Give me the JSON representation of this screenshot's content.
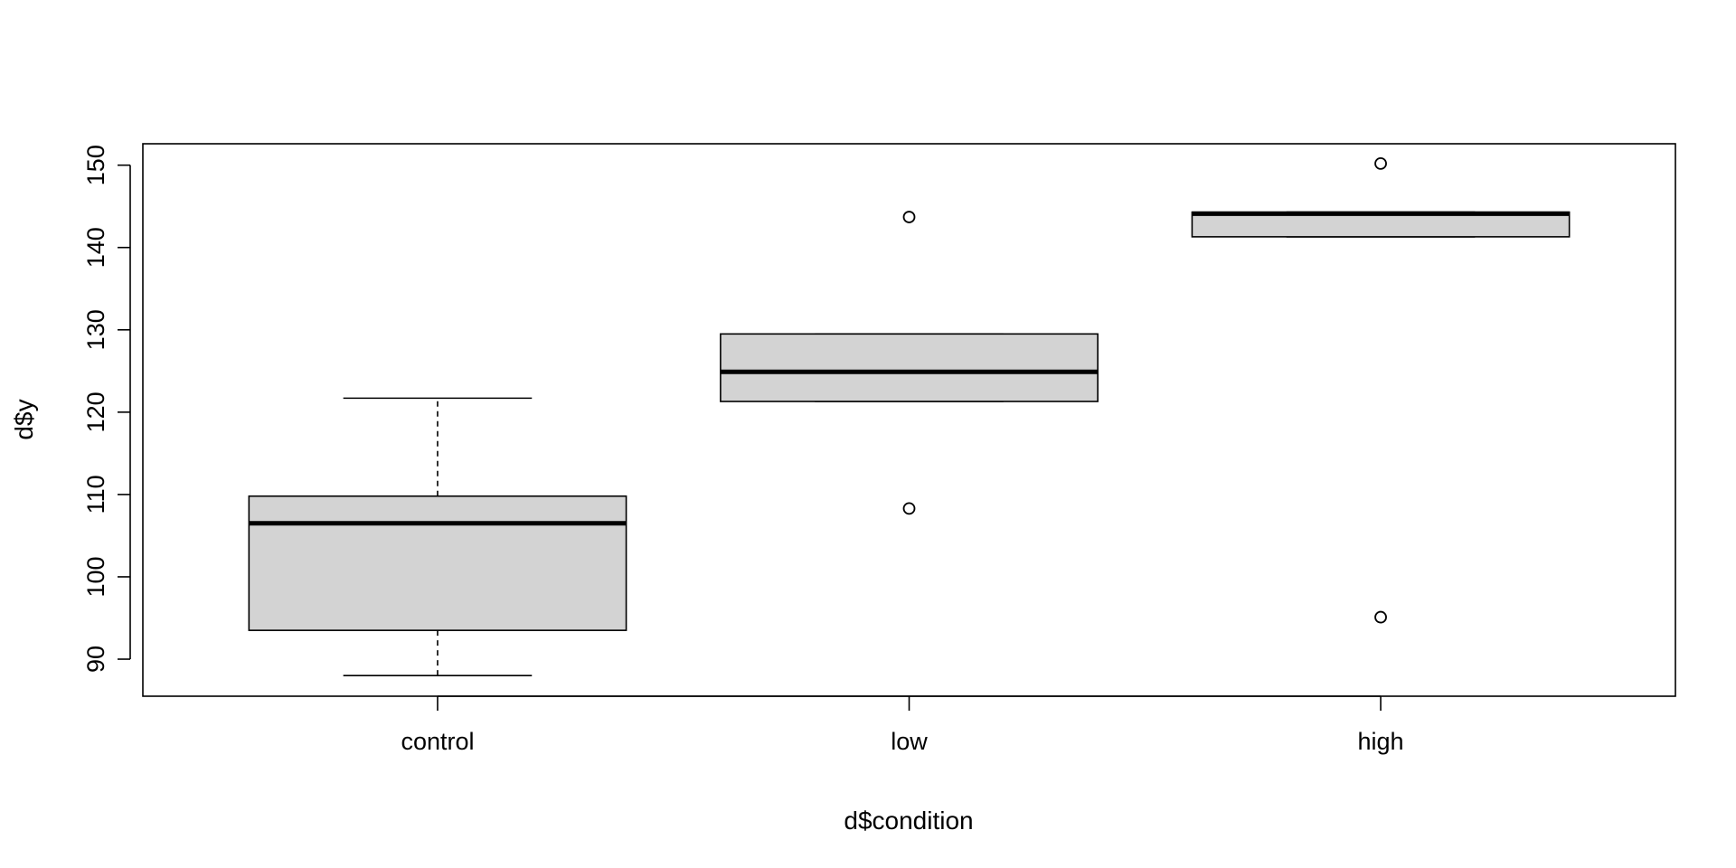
{
  "chart_data": {
    "type": "boxplot",
    "xlabel": "d$condition",
    "ylabel": "d$y",
    "ylim": [
      85.5,
      152.6
    ],
    "y_ticks": [
      90,
      100,
      110,
      120,
      130,
      140,
      150
    ],
    "grid": false,
    "legend": "none",
    "colors": {
      "box_fill": "#d3d3d3",
      "stroke": "#000000",
      "background": "#ffffff"
    },
    "groups": [
      {
        "category": "control",
        "whisker_low": 88.0,
        "q1": 93.5,
        "median": 106.5,
        "q3": 109.8,
        "whisker_high": 121.7,
        "outliers": []
      },
      {
        "category": "low",
        "whisker_low": 121.3,
        "q1": 121.3,
        "median": 124.9,
        "q3": 129.5,
        "whisker_high": 129.5,
        "outliers": [
          143.7,
          108.3
        ]
      },
      {
        "category": "high",
        "whisker_low": 141.3,
        "q1": 141.3,
        "median": 144.1,
        "q3": 144.3,
        "whisker_high": 144.3,
        "outliers": [
          150.2,
          95.1
        ]
      }
    ]
  }
}
